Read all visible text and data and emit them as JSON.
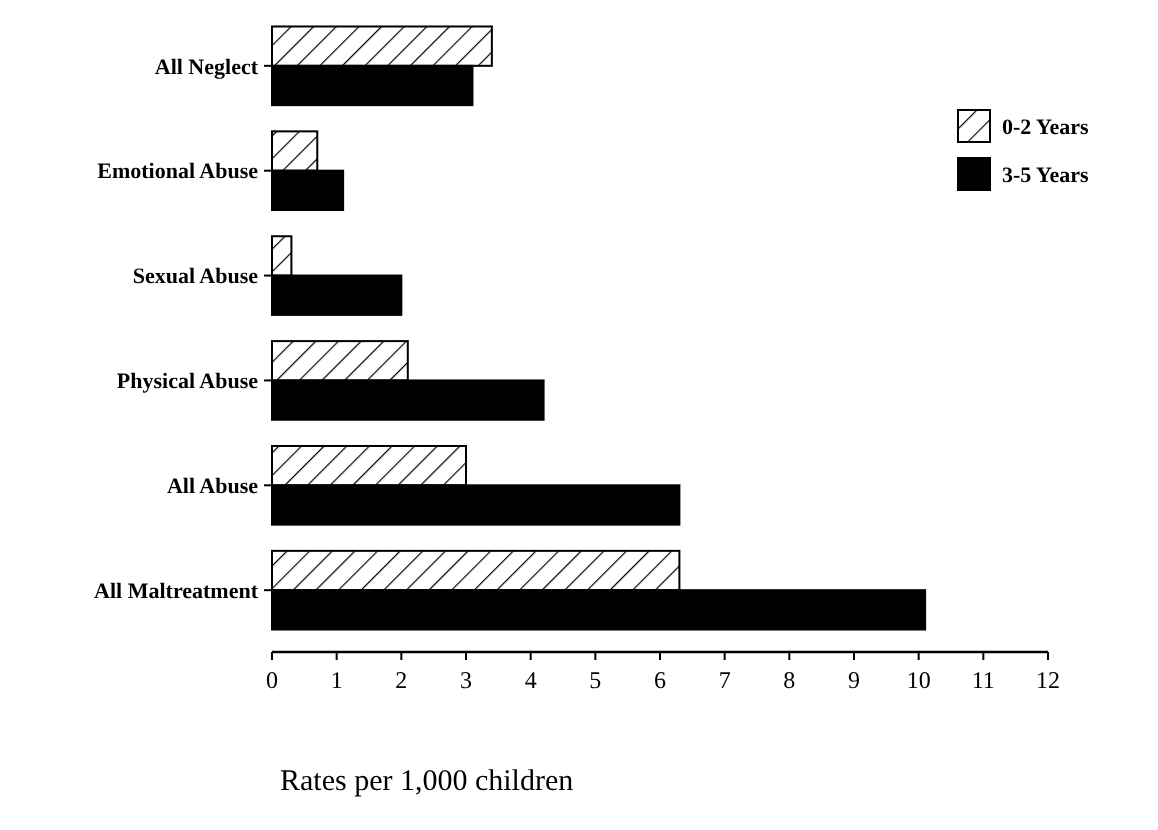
{
  "chart_data": {
    "type": "bar",
    "orientation": "horizontal",
    "xlabel": "Rates per 1,000 children",
    "categories": [
      "All Neglect",
      "Emotional Abuse",
      "Sexual Abuse",
      "Physical Abuse",
      "All Abuse",
      "All Maltreatment"
    ],
    "series": [
      {
        "name": "0-2 Years",
        "color": "#ffffff",
        "values": [
          3.4,
          0.7,
          0.3,
          2.1,
          3.0,
          6.3
        ]
      },
      {
        "name": "3-5 Years",
        "color": "#000000",
        "values": [
          3.1,
          1.1,
          2.0,
          4.2,
          6.3,
          10.1
        ]
      }
    ],
    "xlim": [
      0,
      12
    ],
    "xticks": [
      0,
      1,
      2,
      3,
      4,
      5,
      6,
      7,
      8,
      9,
      10,
      11,
      12
    ],
    "grid": false,
    "legend": "top right"
  }
}
